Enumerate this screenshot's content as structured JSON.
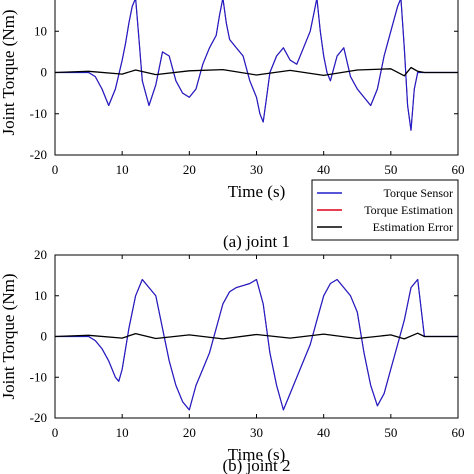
{
  "colors": {
    "sensor": "#1f1fc8",
    "estimation": "#e0001a",
    "error": "#000000"
  },
  "legend": {
    "sensor_label": "Torque Sensor",
    "estimation_label": "Torque Estimation",
    "error_label": "Estimation Error",
    "placement": "bottom-right of first panel"
  },
  "chart_data": [
    {
      "type": "line",
      "caption": "(a) joint 1",
      "xlabel": "Time (s)",
      "ylabel": "Joint Torque (Nm)",
      "xlim": [
        0,
        60
      ],
      "ylim": [
        -20,
        20
      ],
      "xticks": [
        "0",
        "10",
        "20",
        "30",
        "40",
        "50",
        "60"
      ],
      "yticks": [
        "-20",
        "-10",
        "0",
        "10"
      ],
      "series": [
        {
          "name": "Torque Sensor",
          "x": [
            0,
            5,
            6,
            7,
            8,
            9,
            10,
            10.5,
            11,
            11.5,
            12,
            12.5,
            13,
            14,
            15,
            16,
            17,
            18,
            19,
            20,
            21,
            22,
            23,
            24,
            24.5,
            25,
            25.5,
            26,
            27,
            28,
            29,
            30,
            30.5,
            31,
            31.5,
            32,
            33,
            34,
            35,
            36,
            37,
            38,
            38.5,
            39,
            39.5,
            40,
            40.5,
            41,
            42,
            43,
            44,
            45,
            46,
            47,
            48,
            49,
            50,
            51,
            51.5,
            52,
            52.5,
            53,
            53.5,
            54,
            55,
            60
          ],
          "y": [
            0,
            0,
            -1,
            -4,
            -8,
            -4,
            3,
            7,
            12,
            16,
            18,
            8,
            -2,
            -8,
            -3,
            5,
            4,
            -2,
            -5,
            -6,
            -4,
            2,
            6,
            9,
            14,
            18,
            12,
            8,
            6,
            4,
            -2,
            -6,
            -10,
            -12,
            -6,
            0,
            4,
            6,
            3,
            2,
            6,
            10,
            14,
            18,
            10,
            4,
            0,
            -2,
            4,
            6,
            -1,
            -4,
            -6,
            -8,
            -4,
            4,
            10,
            16,
            18,
            6,
            -8,
            -14,
            -4,
            0,
            0,
            0
          ]
        },
        {
          "name": "Torque Estimation",
          "x": [
            0,
            5,
            6,
            7,
            8,
            9,
            10,
            10.5,
            11,
            11.5,
            12,
            12.5,
            13,
            14,
            15,
            16,
            17,
            18,
            19,
            20,
            21,
            22,
            23,
            24,
            24.5,
            25,
            25.5,
            26,
            27,
            28,
            29,
            30,
            30.5,
            31,
            31.5,
            32,
            33,
            34,
            35,
            36,
            37,
            38,
            38.5,
            39,
            39.5,
            40,
            40.5,
            41,
            42,
            43,
            44,
            45,
            46,
            47,
            48,
            49,
            50,
            51,
            51.5,
            52,
            52.5,
            53,
            53.5,
            54,
            55,
            60
          ],
          "y": [
            0,
            0,
            -1,
            -4,
            -8,
            -4,
            3,
            7,
            12,
            16,
            18,
            8,
            -2,
            -8,
            -3,
            5,
            4,
            -2,
            -5,
            -6,
            -4,
            2,
            6,
            9,
            14,
            18,
            12,
            8,
            6,
            4,
            -2,
            -6,
            -10,
            -12,
            -6,
            0,
            4,
            6,
            3,
            2,
            6,
            10,
            14,
            18,
            10,
            4,
            0,
            -2,
            4,
            6,
            -1,
            -4,
            -6,
            -8,
            -4,
            4,
            10,
            16,
            18,
            6,
            -8,
            -14,
            -4,
            0,
            0,
            0
          ]
        },
        {
          "name": "Estimation Error",
          "x": [
            0,
            5,
            10,
            12,
            15,
            20,
            25,
            30,
            35,
            40,
            45,
            50,
            52,
            53,
            54,
            55,
            60
          ],
          "y": [
            0,
            0.3,
            -0.4,
            0.6,
            -0.5,
            0.4,
            0.7,
            -0.6,
            0.5,
            -0.7,
            0.6,
            0.9,
            -0.8,
            1.2,
            0.3,
            0,
            0
          ]
        }
      ]
    },
    {
      "type": "line",
      "caption": "(b) joint 2",
      "xlabel": "Time (s)",
      "ylabel": "Joint Torque (Nm)",
      "xlim": [
        0,
        60
      ],
      "ylim": [
        -20,
        20
      ],
      "xticks": [
        "0",
        "10",
        "20",
        "30",
        "40",
        "50",
        "60"
      ],
      "yticks": [
        "-20",
        "-10",
        "0",
        "10",
        "20"
      ],
      "series": [
        {
          "name": "Torque Sensor",
          "x": [
            0,
            5,
            6,
            7,
            8,
            9,
            9.5,
            10,
            11,
            12,
            13,
            14,
            15,
            16,
            17,
            18,
            19,
            20,
            21,
            22,
            23,
            24,
            25,
            26,
            27,
            28,
            29,
            30,
            31,
            32,
            33,
            34,
            35,
            36,
            37,
            38,
            39,
            40,
            41,
            42,
            43,
            44,
            45,
            46,
            47,
            48,
            49,
            50,
            51,
            52,
            53,
            54,
            55,
            60
          ],
          "y": [
            0,
            0,
            -1,
            -3,
            -6,
            -10,
            -11,
            -8,
            2,
            10,
            14,
            12,
            10,
            2,
            -6,
            -12,
            -16,
            -18,
            -12,
            -8,
            -4,
            2,
            8,
            11,
            12,
            12.5,
            13,
            14,
            8,
            -4,
            -12,
            -18,
            -14,
            -10,
            -6,
            -2,
            4,
            10,
            13,
            14,
            12,
            10,
            6,
            -4,
            -12,
            -17,
            -14,
            -8,
            -2,
            4,
            12,
            14,
            0,
            0
          ]
        },
        {
          "name": "Torque Estimation",
          "x": [
            0,
            5,
            6,
            7,
            8,
            9,
            9.5,
            10,
            11,
            12,
            13,
            14,
            15,
            16,
            17,
            18,
            19,
            20,
            21,
            22,
            23,
            24,
            25,
            26,
            27,
            28,
            29,
            30,
            31,
            32,
            33,
            34,
            35,
            36,
            37,
            38,
            39,
            40,
            41,
            42,
            43,
            44,
            45,
            46,
            47,
            48,
            49,
            50,
            51,
            52,
            53,
            54,
            55,
            60
          ],
          "y": [
            0,
            0,
            -1,
            -3,
            -6,
            -10,
            -11,
            -8,
            2,
            10,
            14,
            12,
            10,
            2,
            -6,
            -12,
            -16,
            -18,
            -12,
            -8,
            -4,
            2,
            8,
            11,
            12,
            12.5,
            13,
            14,
            8,
            -4,
            -12,
            -18,
            -14,
            -10,
            -6,
            -2,
            4,
            10,
            13,
            14,
            12,
            10,
            6,
            -4,
            -12,
            -17,
            -14,
            -8,
            -2,
            4,
            12,
            14,
            0,
            0
          ]
        },
        {
          "name": "Estimation Error",
          "x": [
            0,
            5,
            10,
            12,
            15,
            20,
            25,
            30,
            35,
            40,
            45,
            50,
            52,
            54,
            55,
            60
          ],
          "y": [
            0,
            0.3,
            -0.4,
            0.7,
            -0.5,
            0.4,
            -0.6,
            0.5,
            -0.4,
            0.6,
            -0.5,
            0.4,
            -0.6,
            0.8,
            0,
            0
          ]
        }
      ]
    }
  ]
}
